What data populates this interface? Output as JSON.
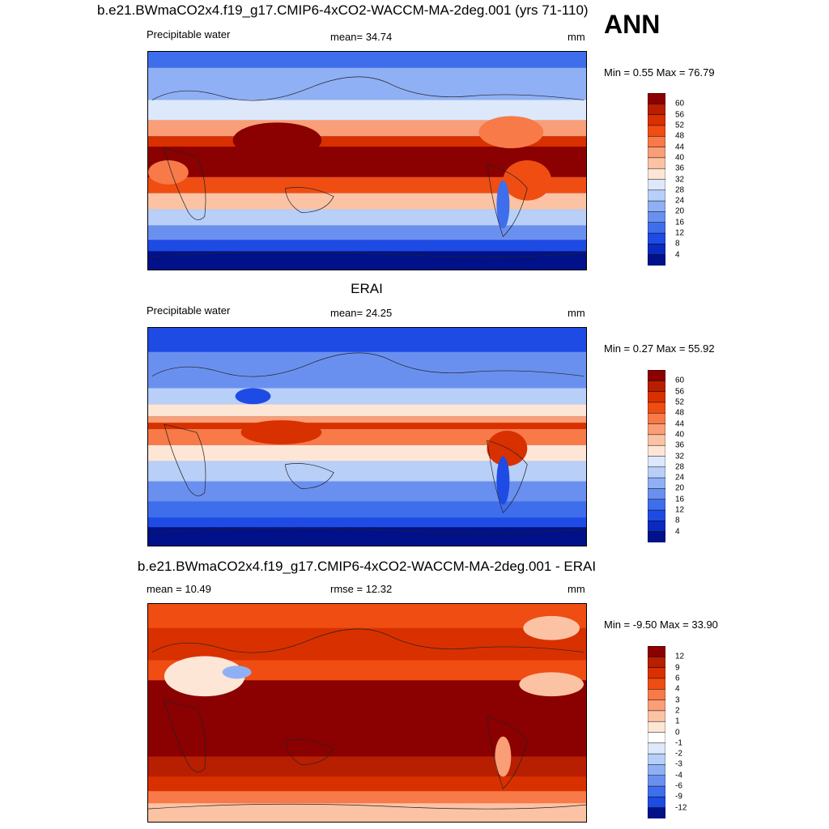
{
  "header": {
    "title": "b.e21.BWmaCO2x4.f19_g17.CMIP6-4xCO2-WACCM-MA-2deg.001 (yrs 71-110)",
    "season": "ANN"
  },
  "panels": [
    {
      "id": "model",
      "left_label": "Precipitable water",
      "stat_label": "mean=  34.74",
      "units": "mm",
      "minmax": "Min =   0.55 Max =  76.79",
      "colorbar_labels": [
        "60",
        "56",
        "52",
        "48",
        "44",
        "40",
        "36",
        "32",
        "28",
        "24",
        "20",
        "16",
        "12",
        "8",
        "4"
      ],
      "colorbar_colors": [
        "#8b0000",
        "#b81e00",
        "#d93000",
        "#f04d12",
        "#f77a48",
        "#f99e76",
        "#fbc3a4",
        "#fde6d6",
        "#dde8fb",
        "#b8cff8",
        "#8fb0f4",
        "#6a90ef",
        "#3f6eec",
        "#1e4be3",
        "#0a2bbe",
        "#00118a"
      ]
    },
    {
      "id": "obs",
      "center_title": "ERAI",
      "left_label": "Precipitable water",
      "stat_label": "mean=  24.25",
      "units": "mm",
      "minmax": "Min =   0.27 Max =  55.92",
      "colorbar_labels": [
        "60",
        "56",
        "52",
        "48",
        "44",
        "40",
        "36",
        "32",
        "28",
        "24",
        "20",
        "16",
        "12",
        "8",
        "4"
      ],
      "colorbar_colors": [
        "#8b0000",
        "#b81e00",
        "#d93000",
        "#f04d12",
        "#f77a48",
        "#f99e76",
        "#fbc3a4",
        "#fde6d6",
        "#dde8fb",
        "#b8cff8",
        "#8fb0f4",
        "#6a90ef",
        "#3f6eec",
        "#1e4be3",
        "#0a2bbe",
        "#00118a"
      ]
    },
    {
      "id": "diff",
      "center_title": "b.e21.BWmaCO2x4.f19_g17.CMIP6-4xCO2-WACCM-MA-2deg.001 - ERAI",
      "left_label": "mean =  10.49",
      "stat_label": "rmse =  12.32",
      "units": "mm",
      "minmax": "Min =  -9.50 Max =  33.90",
      "colorbar_labels": [
        "12",
        "9",
        "6",
        "4",
        "3",
        "2",
        "1",
        "0",
        "-1",
        "-2",
        "-3",
        "-4",
        "-6",
        "-9",
        "-12"
      ],
      "colorbar_colors": [
        "#8b0000",
        "#b81e00",
        "#d93000",
        "#f04d12",
        "#f77a48",
        "#f99e76",
        "#fbc3a4",
        "#fde6d6",
        "#ffffff",
        "#dde8fb",
        "#b8cff8",
        "#8fb0f4",
        "#6a90ef",
        "#3f6eec",
        "#1e4be3",
        "#00118a"
      ]
    }
  ]
}
